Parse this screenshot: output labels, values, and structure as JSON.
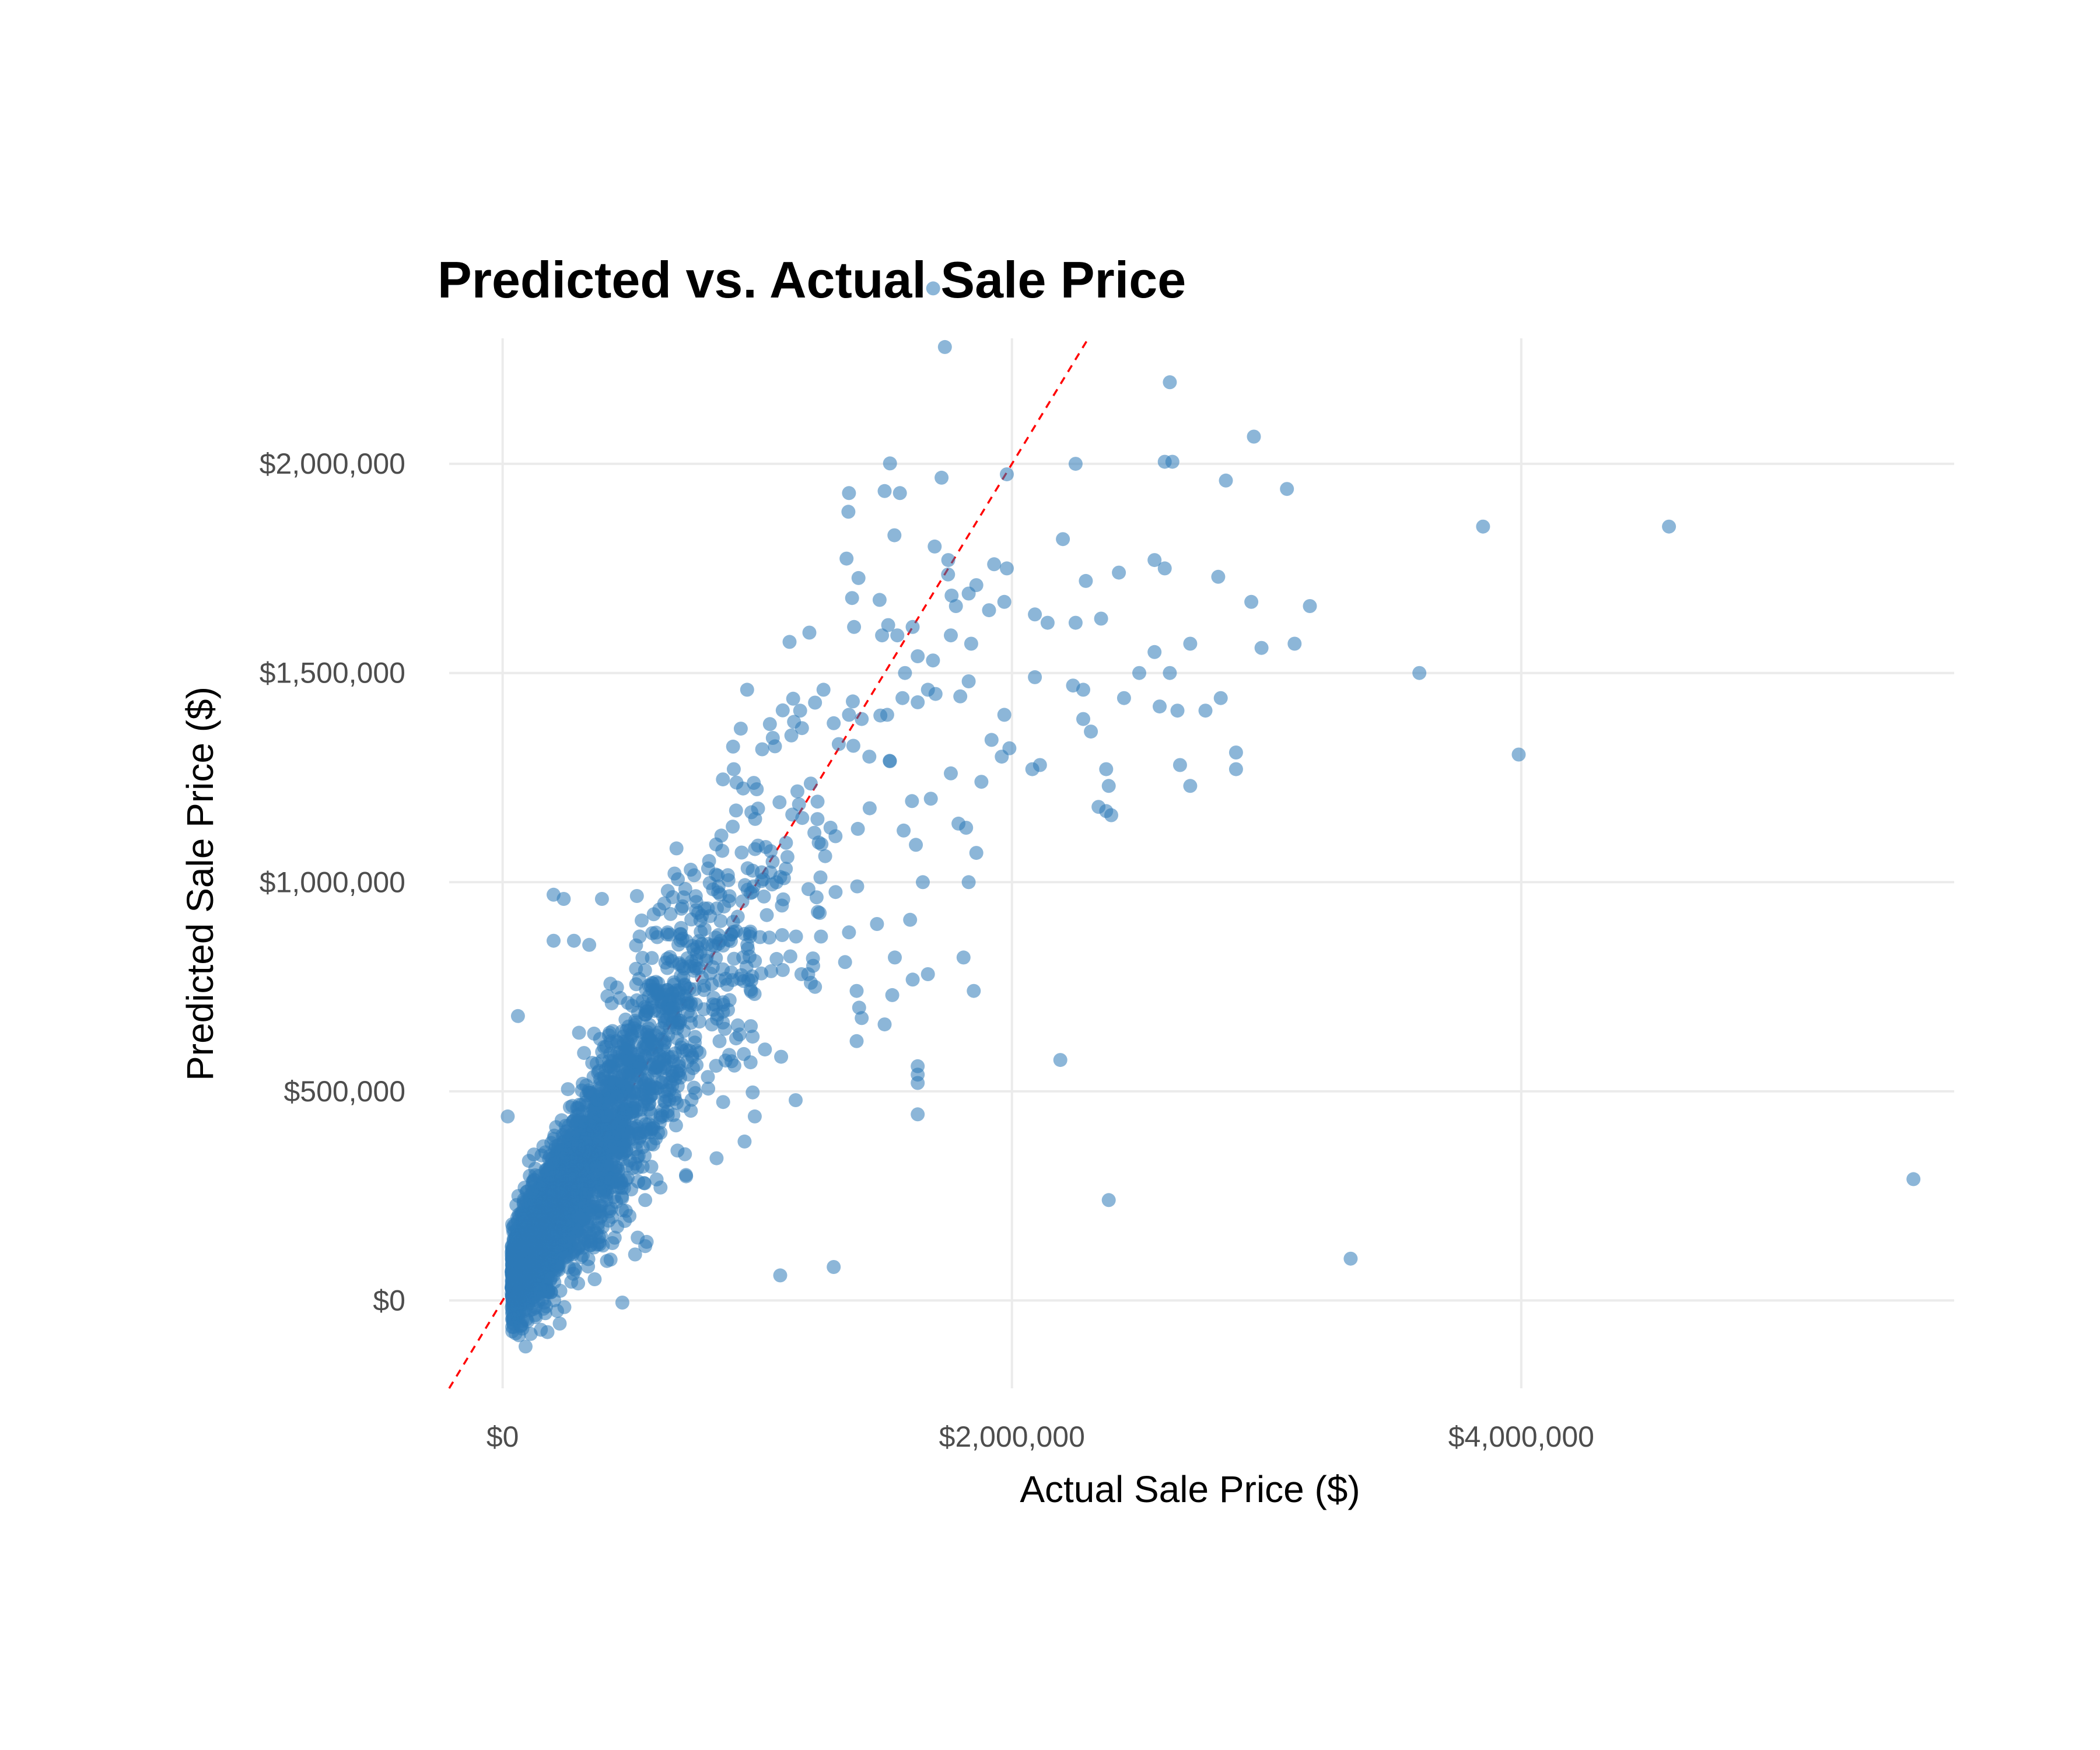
{
  "chart_data": {
    "type": "scatter",
    "title": "Predicted vs. Actual Sale Price",
    "xlabel": "Actual Sale Price ($)",
    "ylabel": "Predicted Sale Price ($)",
    "xlim": [
      -210000,
      5700000
    ],
    "ylim": [
      -210000,
      2300000
    ],
    "x_ticks": [
      0,
      2000000,
      4000000
    ],
    "x_tick_labels": [
      "$0",
      "$2,000,000",
      "$4,000,000"
    ],
    "y_ticks": [
      0,
      500000,
      1000000,
      1500000,
      2000000
    ],
    "y_tick_labels": [
      "$0",
      "$500,000",
      "$1,000,000",
      "$1,500,000",
      "$2,000,000"
    ],
    "grid": true,
    "legend": "none",
    "reference_line": {
      "slope": 1,
      "intercept": 0,
      "style": "dashed",
      "color": "#ff0000"
    },
    "point_color": "#2e7ab8",
    "series": [
      {
        "points": [
          [
            2620000,
            2195000
          ],
          [
            2950000,
            2065000
          ],
          [
            2600000,
            2005000
          ],
          [
            2630000,
            2005000
          ],
          [
            2250000,
            2000000
          ],
          [
            1980000,
            1975000
          ],
          [
            2840000,
            1960000
          ],
          [
            3080000,
            1940000
          ],
          [
            1500000,
            1935000
          ],
          [
            1560000,
            1930000
          ],
          [
            1360000,
            1930000
          ],
          [
            3850000,
            1850000
          ],
          [
            4580000,
            1850000
          ],
          [
            2200000,
            1820000
          ],
          [
            1750000,
            1770000
          ],
          [
            2560000,
            1770000
          ],
          [
            2600000,
            1750000
          ],
          [
            1930000,
            1760000
          ],
          [
            1980000,
            1750000
          ],
          [
            2420000,
            1740000
          ],
          [
            2290000,
            1720000
          ],
          [
            2810000,
            1730000
          ],
          [
            1860000,
            1710000
          ],
          [
            1830000,
            1690000
          ],
          [
            2940000,
            1670000
          ],
          [
            3170000,
            1660000
          ],
          [
            1780000,
            1660000
          ],
          [
            1910000,
            1650000
          ],
          [
            1970000,
            1670000
          ],
          [
            2350000,
            1630000
          ],
          [
            2090000,
            1640000
          ],
          [
            2140000,
            1620000
          ],
          [
            2250000,
            1620000
          ],
          [
            1610000,
            1610000
          ],
          [
            1380000,
            1610000
          ],
          [
            1490000,
            1590000
          ],
          [
            1550000,
            1590000
          ],
          [
            1760000,
            1590000
          ],
          [
            1840000,
            1570000
          ],
          [
            2700000,
            1570000
          ],
          [
            2560000,
            1550000
          ],
          [
            2980000,
            1560000
          ],
          [
            3110000,
            1570000
          ],
          [
            1630000,
            1540000
          ],
          [
            1690000,
            1530000
          ],
          [
            1580000,
            1500000
          ],
          [
            2620000,
            1500000
          ],
          [
            2500000,
            1500000
          ],
          [
            3600000,
            1500000
          ],
          [
            2090000,
            1490000
          ],
          [
            2240000,
            1470000
          ],
          [
            2280000,
            1460000
          ],
          [
            1670000,
            1460000
          ],
          [
            1830000,
            1480000
          ],
          [
            1260000,
            1460000
          ],
          [
            960000,
            1460000
          ],
          [
            1570000,
            1440000
          ],
          [
            1700000,
            1450000
          ],
          [
            2440000,
            1440000
          ],
          [
            2820000,
            1440000
          ],
          [
            2580000,
            1420000
          ],
          [
            2650000,
            1410000
          ],
          [
            2760000,
            1410000
          ],
          [
            1630000,
            1430000
          ],
          [
            1510000,
            1400000
          ],
          [
            1360000,
            1400000
          ],
          [
            1410000,
            1390000
          ],
          [
            1970000,
            1400000
          ],
          [
            2280000,
            1390000
          ],
          [
            1300000,
            1380000
          ],
          [
            2310000,
            1360000
          ],
          [
            1920000,
            1340000
          ],
          [
            1320000,
            1330000
          ],
          [
            1990000,
            1320000
          ],
          [
            2880000,
            1310000
          ],
          [
            3990000,
            1305000
          ],
          [
            1440000,
            1300000
          ],
          [
            1520000,
            1290000
          ],
          [
            1960000,
            1300000
          ],
          [
            2080000,
            1270000
          ],
          [
            2660000,
            1280000
          ],
          [
            2880000,
            1270000
          ],
          [
            2110000,
            1280000
          ],
          [
            2370000,
            1270000
          ],
          [
            1760000,
            1260000
          ],
          [
            1880000,
            1240000
          ],
          [
            2380000,
            1230000
          ],
          [
            2700000,
            1230000
          ],
          [
            2340000,
            1180000
          ],
          [
            2370000,
            1170000
          ],
          [
            2390000,
            1160000
          ],
          [
            1790000,
            1140000
          ],
          [
            1820000,
            1130000
          ],
          [
            1860000,
            1070000
          ],
          [
            1830000,
            1000000
          ],
          [
            1810000,
            820000
          ],
          [
            1850000,
            740000
          ],
          [
            2190000,
            575000
          ],
          [
            1630000,
            560000
          ],
          [
            1630000,
            540000
          ],
          [
            1630000,
            520000
          ],
          [
            1630000,
            445000
          ],
          [
            1390000,
            740000
          ],
          [
            1400000,
            700000
          ],
          [
            1410000,
            675000
          ],
          [
            1390000,
            620000
          ],
          [
            1500000,
            660000
          ],
          [
            1530000,
            730000
          ],
          [
            1670000,
            780000
          ],
          [
            1540000,
            820000
          ],
          [
            1360000,
            880000
          ],
          [
            1470000,
            900000
          ],
          [
            1600000,
            910000
          ],
          [
            1650000,
            1000000
          ],
          [
            1250000,
            870000
          ],
          [
            1200000,
            780000
          ],
          [
            1100000,
            790000
          ],
          [
            1030000,
            600000
          ],
          [
            990000,
            440000
          ],
          [
            950000,
            380000
          ],
          [
            840000,
            340000
          ],
          [
            720000,
            300000
          ],
          [
            620000,
            270000
          ],
          [
            560000,
            240000
          ],
          [
            480000,
            190000
          ],
          [
            440000,
            150000
          ],
          [
            560000,
            130000
          ],
          [
            520000,
            110000
          ],
          [
            1300000,
            80000
          ],
          [
            1090000,
            60000
          ],
          [
            2380000,
            240000
          ],
          [
            3330000,
            100000
          ],
          [
            5540000,
            290000
          ],
          [
            470000,
            -5000
          ],
          [
            60000,
            680000
          ],
          [
            20000,
            440000
          ],
          [
            200000,
            970000
          ],
          [
            240000,
            960000
          ],
          [
            390000,
            960000
          ],
          [
            200000,
            860000
          ],
          [
            280000,
            860000
          ],
          [
            340000,
            850000
          ],
          [
            420000,
            640000
          ],
          [
            300000,
            640000
          ],
          [
            80000,
            120000
          ],
          [
            70000,
            90000
          ],
          [
            100000,
            80000
          ],
          [
            120000,
            60000
          ],
          [
            50000,
            40000
          ],
          [
            60000,
            20000
          ],
          [
            40000,
            0
          ],
          [
            90000,
            -20000
          ],
          [
            130000,
            -40000
          ],
          [
            70000,
            -60000
          ],
          [
            110000,
            -80000
          ],
          [
            90000,
            -110000
          ],
          [
            150000,
            -70000
          ],
          [
            160000,
            -20000
          ],
          [
            180000,
            20000
          ],
          [
            200000,
            60000
          ]
        ]
      }
    ]
  }
}
